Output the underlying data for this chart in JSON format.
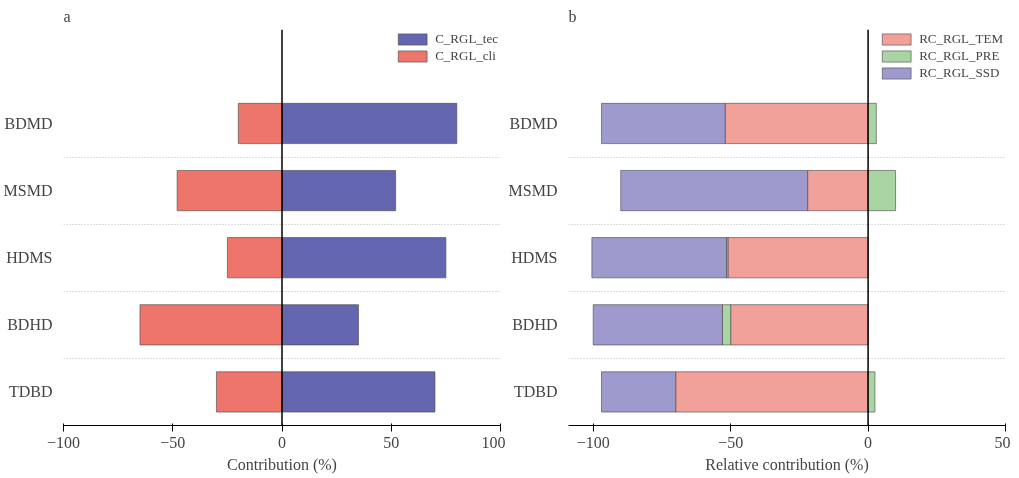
{
  "chart_data": [
    {
      "type": "bar",
      "title": "a",
      "orientation": "horizontal",
      "stacked": true,
      "xlabel": "Contribution (%)",
      "categories": [
        "BDMD",
        "MSMD",
        "HDMS",
        "BDHD",
        "TDBD"
      ],
      "series": [
        {
          "name": "C_RGL_tec",
          "color": "#6466b0",
          "values": [
            80,
            52,
            75,
            35,
            70
          ]
        },
        {
          "name": "C_RGL_cli",
          "color": "#ee756b",
          "values": [
            -20,
            -48,
            -25,
            -65,
            -30
          ]
        }
      ],
      "xlim": [
        -100,
        100
      ],
      "xticks": [
        -100,
        -50,
        0,
        50,
        100
      ],
      "ref_lines": [
        {
          "axis": "x",
          "value": 0,
          "label": null
        }
      ],
      "grid": "y",
      "legend": "top right"
    },
    {
      "type": "bar",
      "title": "b",
      "orientation": "horizontal",
      "stacked": true,
      "xlabel": "Relative contribution (%)",
      "categories": [
        "BDMD",
        "MSMD",
        "HDMS",
        "BDHD",
        "TDBD"
      ],
      "series": [
        {
          "name": "RC_RGL_TEM",
          "color": "#f2a09a",
          "values": [
            -52,
            -22,
            -51,
            -50,
            -70
          ]
        },
        {
          "name": "RC_RGL_PRE",
          "color": "#a8d5a2",
          "values": [
            3,
            10,
            -0.5,
            -3,
            2.5
          ]
        },
        {
          "name": "RC_RGL_SSD",
          "color": "#9e9acd",
          "values": [
            -45,
            -68,
            -49,
            -47,
            -27
          ]
        }
      ],
      "xlim": [
        -109,
        50
      ],
      "xticks": [
        -100,
        -50,
        0,
        50
      ],
      "ref_lines": [
        {
          "axis": "x",
          "value": 0,
          "label": null
        }
      ],
      "grid": "y",
      "legend": "top right"
    }
  ]
}
